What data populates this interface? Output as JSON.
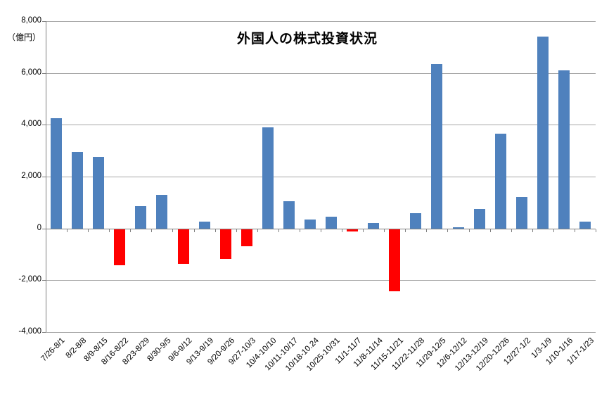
{
  "chart_data": {
    "type": "bar",
    "title": "外国人の株式投資状況",
    "unit_label": "（億円）",
    "xlabel": "",
    "ylabel": "",
    "ylim": [
      -4000,
      8000
    ],
    "ytick_interval": 2000,
    "ytick_labels": [
      "8,000",
      "6,000",
      "4,000",
      "2,000",
      "0",
      "-2,000",
      "-4,000"
    ],
    "grid": true,
    "legend_position": "none",
    "categories": [
      "7/26-8/1",
      "8/2-8/8",
      "8/9-8/15",
      "8/16-8/22",
      "8/23-8/29",
      "8/30-9/5",
      "9/6-9/12",
      "9/13-9/19",
      "9/20-9/26",
      "9/27-10/3",
      "10/4-10/10",
      "10/11-10/17",
      "10/18-10.24",
      "10/25-10/31",
      "11/1-11/7",
      "11/8-11/14",
      "11/15-11/21",
      "11/22-11/28",
      "11/29-12/5",
      "12/6-12/12",
      "12/13-12/19",
      "12/20-12/26",
      "12/27-1/2",
      "1/3-1/9",
      "1/10-1/16",
      "1/17-1/23"
    ],
    "values": [
      4250,
      2950,
      2750,
      -1400,
      850,
      1300,
      -1350,
      250,
      -1150,
      -650,
      3900,
      1050,
      350,
      450,
      -100,
      200,
      -2400,
      600,
      6350,
      50,
      750,
      3650,
      1200,
      7400,
      6100,
      250
    ],
    "colors": {
      "positive_bar": "#4F81BD",
      "negative_bar": "#FF0000",
      "gridline": "#A6A6A6",
      "axis": "#808080",
      "title_text": "#000000"
    }
  }
}
